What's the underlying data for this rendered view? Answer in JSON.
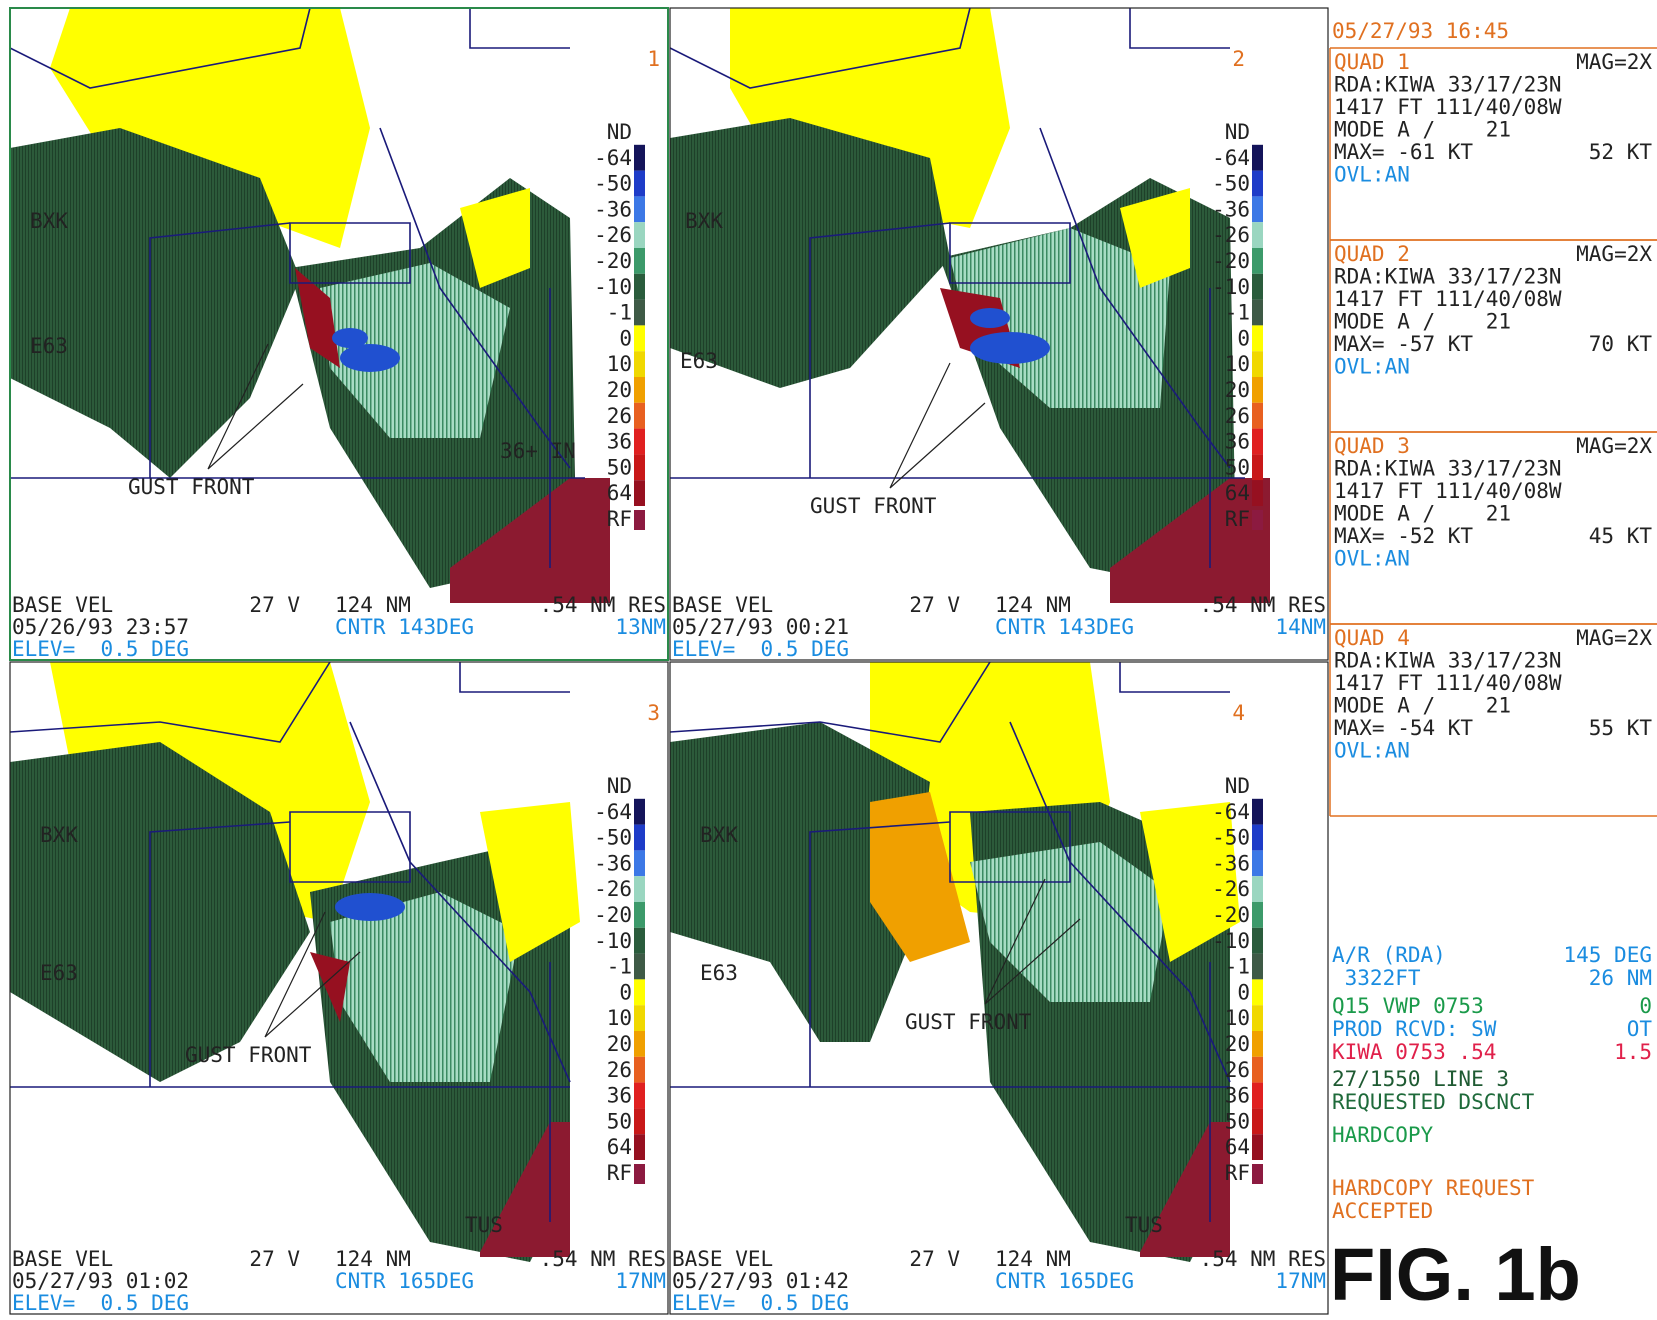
{
  "legend": [
    {
      "label": "ND"
    },
    {
      "label": "-64",
      "color": "#14145a"
    },
    {
      "label": "-50",
      "color": "#1e3cc8"
    },
    {
      "label": "-36",
      "color": "#3c78e6"
    },
    {
      "label": "-26",
      "color": "#9ad6c0"
    },
    {
      "label": "-20",
      "color": "#3c9a6a"
    },
    {
      "label": "-10",
      "color": "#2a5c3c"
    },
    {
      "label": "-1",
      "color": "#3e5a46"
    },
    {
      "label": "0",
      "color": "#ffff00"
    },
    {
      "label": "10",
      "color": "#f0d800"
    },
    {
      "label": "20",
      "color": "#f0a000"
    },
    {
      "label": "26",
      "color": "#e86020"
    },
    {
      "label": "36",
      "color": "#e02020"
    },
    {
      "label": "50",
      "color": "#c81818"
    },
    {
      "label": "64",
      "color": "#961020"
    },
    {
      "label": "RF",
      "color": "#8c1a40"
    }
  ],
  "quadrants": [
    {
      "number": "1",
      "labels": [
        "BXK",
        "E63",
        "GUST FRONT",
        "36+ IN"
      ],
      "footer": {
        "product": "BASE VEL",
        "code": "27 V",
        "range": "124 NM",
        "res": ".54 NM RES",
        "datetime": "05/26/93 23:57",
        "center": "CNTR 143DEG",
        "distance": "13NM",
        "elevation": "ELEV=  0.5 DEG"
      }
    },
    {
      "number": "2",
      "labels": [
        "BXK",
        "E63",
        "GUST FRONT"
      ],
      "footer": {
        "product": "BASE VEL",
        "code": "27 V",
        "range": "124 NM",
        "res": ".54 NM RES",
        "datetime": "05/27/93 00:21",
        "center": "CNTR 143DEG",
        "distance": "14NM",
        "elevation": "ELEV=  0.5 DEG"
      }
    },
    {
      "number": "3",
      "labels": [
        "BXK",
        "E63",
        "GUST FRONT",
        "TUS"
      ],
      "footer": {
        "product": "BASE VEL",
        "code": "27 V",
        "range": "124 NM",
        "res": ".54 NM RES",
        "datetime": "05/27/93 01:02",
        "center": "CNTR 165DEG",
        "distance": "17NM",
        "elevation": "ELEV=  0.5 DEG"
      }
    },
    {
      "number": "4",
      "labels": [
        "BXK",
        "E63",
        "GUST FRONT",
        "TUS"
      ],
      "footer": {
        "product": "BASE VEL",
        "code": "27 V",
        "range": "124 NM",
        "res": ".54 NM RES",
        "datetime": "05/27/93 01:42",
        "center": "CNTR 165DEG",
        "distance": "17NM",
        "elevation": "ELEV=  0.5 DEG"
      }
    }
  ],
  "side_panel": {
    "datetime": "05/27/93 16:45",
    "quads": [
      {
        "title": "QUAD 1",
        "mag": "MAG=2X",
        "rda": "RDA:KIWA 33/17/23N",
        "location": "1417 FT 111/40/08W",
        "mode": "MODE A /    21",
        "max": "MAX= -61 KT",
        "max_right": "52 KT",
        "overlay": "OVL:AN"
      },
      {
        "title": "QUAD 2",
        "mag": "MAG=2X",
        "rda": "RDA:KIWA 33/17/23N",
        "location": "1417 FT 111/40/08W",
        "mode": "MODE A /    21",
        "max": "MAX= -57 KT",
        "max_right": "70 KT",
        "overlay": "OVL:AN"
      },
      {
        "title": "QUAD 3",
        "mag": "MAG=2X",
        "rda": "RDA:KIWA 33/17/23N",
        "location": "1417 FT 111/40/08W",
        "mode": "MODE A /    21",
        "max": "MAX= -52 KT",
        "max_right": "45 KT",
        "overlay": "OVL:AN"
      },
      {
        "title": "QUAD 4",
        "mag": "MAG=2X",
        "rda": "RDA:KIWA 33/17/23N",
        "location": "1417 FT 111/40/08W",
        "mode": "MODE A /    21",
        "max": "MAX= -54 KT",
        "max_right": "55 KT",
        "overlay": "OVL:AN"
      }
    ],
    "status": [
      {
        "left": "A/R (RDA)",
        "right": "145 DEG",
        "color": "#1a8ce0"
      },
      {
        "left": " 3322FT",
        "right": "26 NM",
        "color": "#1a8ce0"
      },
      {
        "left": "Q15 VWP 0753",
        "right": "0",
        "color": "#1a9a4a"
      },
      {
        "left": "PROD RCVD: SW",
        "right": "OT",
        "color": "#1a8ce0"
      },
      {
        "left": "KIWA 0753 .54",
        "right": "1.5",
        "color": "#e0204a"
      },
      {
        "left": "27/1550 LINE 3",
        "color": "#1e5a32"
      },
      {
        "left": "REQUESTED DSCNCT",
        "color": "#1e6a3a"
      },
      {
        "left": "HARDCOPY",
        "color": "#1a9a4a"
      },
      {
        "left": "HARDCOPY REQUEST",
        "color": "#e07020"
      },
      {
        "left": "ACCEPTED",
        "color": "#e07020"
      }
    ],
    "figure": "FIG. 1b"
  }
}
